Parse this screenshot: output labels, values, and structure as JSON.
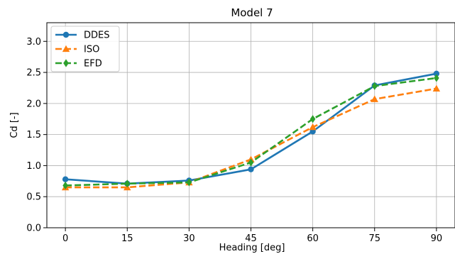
{
  "chart_data": {
    "type": "line",
    "title": "Model 7",
    "xlabel": "Heading [deg]",
    "ylabel": "Cd [-]",
    "x": [
      0,
      15,
      30,
      45,
      60,
      75,
      90
    ],
    "x_ticks": [
      "0",
      "15",
      "30",
      "45",
      "60",
      "75",
      "90"
    ],
    "y_ticks": [
      "0.0",
      "0.5",
      "1.0",
      "1.5",
      "2.0",
      "2.5",
      "3.0"
    ],
    "xlim": [
      -4.5,
      94.5
    ],
    "ylim": [
      0.0,
      3.3
    ],
    "grid": true,
    "legend_position": "top-left",
    "series": [
      {
        "name": "DDES",
        "values": [
          0.78,
          0.71,
          0.76,
          0.94,
          1.55,
          2.29,
          2.48
        ],
        "color": "#1f77b4",
        "dash": "solid",
        "marker": "circle"
      },
      {
        "name": "ISO",
        "values": [
          0.65,
          0.65,
          0.73,
          1.1,
          1.62,
          2.07,
          2.24
        ],
        "color": "#ff7f0e",
        "dash": "dashed",
        "marker": "triangle"
      },
      {
        "name": "EFD",
        "values": [
          0.68,
          0.71,
          0.73,
          1.05,
          1.75,
          2.28,
          2.41
        ],
        "color": "#2ca02c",
        "dash": "dashed",
        "marker": "diamond"
      }
    ]
  }
}
